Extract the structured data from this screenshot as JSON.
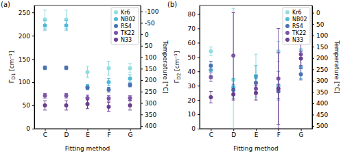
{
  "chart_data": [
    {
      "type": "scatter",
      "title": "(a)",
      "xlabel": "Fitting method",
      "ylabel": "ΓD1 [cm⁻¹]",
      "y2label": "Temperature [°C]",
      "categories": [
        "C",
        "D",
        "E",
        "F",
        "G"
      ],
      "series": [
        {
          "name": "Kr6",
          "color": "#8fdde3",
          "values": [
            235,
            235,
            122,
            130,
            130
          ],
          "errors": [
            20,
            20,
            12,
            15,
            10
          ]
        },
        {
          "name": "NB02",
          "color": "#4fb9d9",
          "values": [
            222,
            222,
            90,
            100,
            108
          ],
          "errors": [
            10,
            10,
            5,
            8,
            8
          ]
        },
        {
          "name": "RS4",
          "color": "#4a72b2",
          "values": [
            131,
            131,
            88,
            84,
            94
          ],
          "errors": [
            4,
            4,
            4,
            5,
            4
          ]
        },
        {
          "name": "TK22",
          "color": "#7d55a8",
          "values": [
            71,
            71,
            66,
            65,
            66
          ],
          "errors": [
            5,
            5,
            6,
            6,
            5
          ]
        },
        {
          "name": "N33",
          "color": "#6a3d8c",
          "values": [
            50,
            50,
            53,
            47,
            50
          ],
          "errors": [
            10,
            10,
            10,
            10,
            10
          ]
        }
      ],
      "ylim": [
        0,
        265
      ],
      "yticks": [
        0,
        50,
        100,
        150,
        200,
        250
      ],
      "y2lim": [
        412,
        -126
      ],
      "y2ticks": [
        -100,
        -50,
        0,
        50,
        100,
        150,
        200,
        250,
        300,
        350,
        400
      ],
      "legend": "upper right",
      "marker": "o",
      "grid": false
    },
    {
      "type": "scatter",
      "title": "(b)",
      "xlabel": "Fitting method",
      "ylabel": "ΓD2 [cm⁻¹]",
      "y2label": "Temperature [°C]",
      "categories": [
        "C",
        "D",
        "E",
        "F",
        "G"
      ],
      "series": [
        {
          "name": "Kr6",
          "color": "#8fdde3",
          "values": [
            54,
            34,
            37,
            54,
            55
          ],
          "errors": [
            3,
            50,
            15,
            7,
            6
          ]
        },
        {
          "name": "NB02",
          "color": "#4fb9d9",
          "values": [
            41,
            29,
            36,
            30,
            43
          ],
          "errors": [
            4,
            6,
            8,
            10,
            8
          ]
        },
        {
          "name": "RS4",
          "color": "#4a72b2",
          "values": [
            44,
            27,
            32,
            26,
            38
          ],
          "errors": [
            3,
            4,
            5,
            5,
            4
          ]
        },
        {
          "name": "TK22",
          "color": "#7d55a8",
          "values": [
            36,
            51,
            28,
            35,
            52
          ],
          "errors": [
            3,
            30,
            4,
            35,
            10
          ]
        },
        {
          "name": "N33",
          "color": "#6a3d8c",
          "values": [
            22,
            24,
            25,
            28,
            49
          ],
          "errors": [
            4,
            4,
            5,
            25,
            5
          ]
        }
      ],
      "ylim": [
        0,
        86
      ],
      "yticks": [
        0,
        10,
        20,
        30,
        40,
        50,
        60,
        70,
        80
      ],
      "y2lim": [
        512,
        -32
      ],
      "y2ticks": [
        0,
        50,
        100,
        150,
        200,
        250,
        300,
        350,
        400,
        450,
        500
      ],
      "legend": "upper right",
      "marker": "o",
      "grid": false
    }
  ]
}
